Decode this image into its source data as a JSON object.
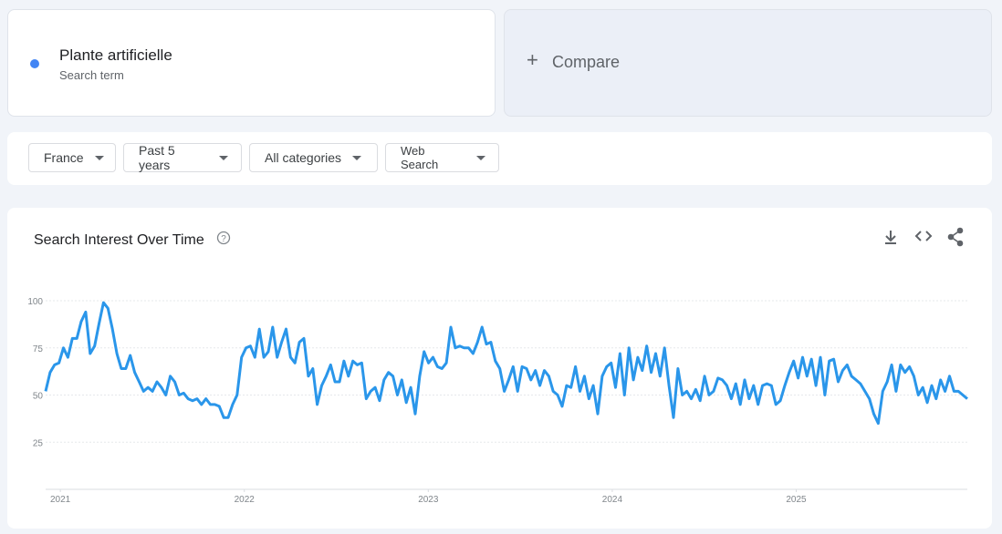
{
  "search_term": {
    "name": "Plante artificielle",
    "label": "Search term"
  },
  "compare": "Compare",
  "filters": [
    "France",
    "Past 5 years",
    "All categories",
    "Web Search"
  ],
  "chart_data": {
    "type": "line",
    "title": "Search Interest Over Time",
    "color": "#2a96ea",
    "xlim": [
      2020.92,
      2025.93
    ],
    "xticks": [
      2021,
      2022,
      2023,
      2024,
      2025
    ],
    "ylim": [
      0,
      100
    ],
    "yticks": [
      25,
      50,
      75,
      100
    ],
    "grid": true,
    "values": [
      52,
      62,
      66,
      67,
      75,
      70,
      80,
      80,
      89,
      94,
      72,
      76,
      88,
      99,
      96,
      85,
      72,
      64,
      64,
      71,
      62,
      57,
      52,
      54,
      52,
      57,
      54,
      50,
      60,
      57,
      50,
      51,
      48,
      47,
      48,
      45,
      48,
      45,
      45,
      44,
      38,
      38,
      45,
      50,
      70,
      75,
      76,
      70,
      85,
      70,
      73,
      86,
      70,
      78,
      85,
      70,
      67,
      78,
      80,
      60,
      64,
      45,
      55,
      60,
      66,
      57,
      57,
      68,
      60,
      68,
      66,
      67,
      48,
      52,
      54,
      47,
      58,
      62,
      60,
      50,
      58,
      46,
      54,
      40,
      60,
      73,
      67,
      70,
      65,
      64,
      67,
      86,
      75,
      76,
      75,
      75,
      72,
      78,
      86,
      77,
      78,
      68,
      64,
      52,
      58,
      65,
      52,
      65,
      64,
      58,
      63,
      55,
      63,
      60,
      52,
      50,
      44,
      55,
      54,
      65,
      52,
      60,
      48,
      55,
      40,
      60,
      65,
      67,
      54,
      72,
      50,
      75,
      58,
      70,
      63,
      76,
      62,
      72,
      60,
      75,
      55,
      38,
      64,
      50,
      52,
      48,
      53,
      47,
      60,
      50,
      52,
      59,
      58,
      55,
      48,
      56,
      45,
      58,
      48,
      55,
      45,
      55,
      56,
      55,
      45,
      47,
      55,
      62,
      68,
      59,
      70,
      60,
      69,
      55,
      70,
      50,
      68,
      69,
      57,
      63,
      66,
      60,
      58,
      56,
      52,
      48,
      40,
      35,
      52,
      57,
      66,
      52,
      66,
      62,
      65,
      60,
      50,
      54,
      46,
      55,
      48,
      58,
      52,
      60,
      52,
      52,
      50,
      48
    ]
  }
}
